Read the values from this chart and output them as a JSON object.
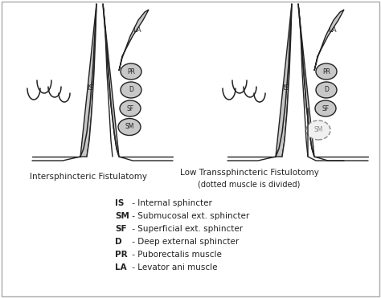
{
  "bg_color": "#ffffff",
  "outline_color": "#222222",
  "fill_gray": "#c8c8c8",
  "fill_white": "#ffffff",
  "fill_dotted": "#e0e0e0",
  "title1": "Intersphincteric Fistulatomy",
  "title2": "Low Transsphincteric Fistulotomy",
  "title2b": "(dotted muscle is divided)",
  "legend": [
    [
      "IS",
      "Internal sphincter"
    ],
    [
      "SM",
      "Submucosal ext. sphincter"
    ],
    [
      "SF",
      "Superficial ext. sphincter"
    ],
    [
      "D",
      "Deep external sphincter"
    ],
    [
      "PR",
      "Puborectalis muscle"
    ],
    [
      "LA",
      "Levator ani muscle"
    ]
  ]
}
